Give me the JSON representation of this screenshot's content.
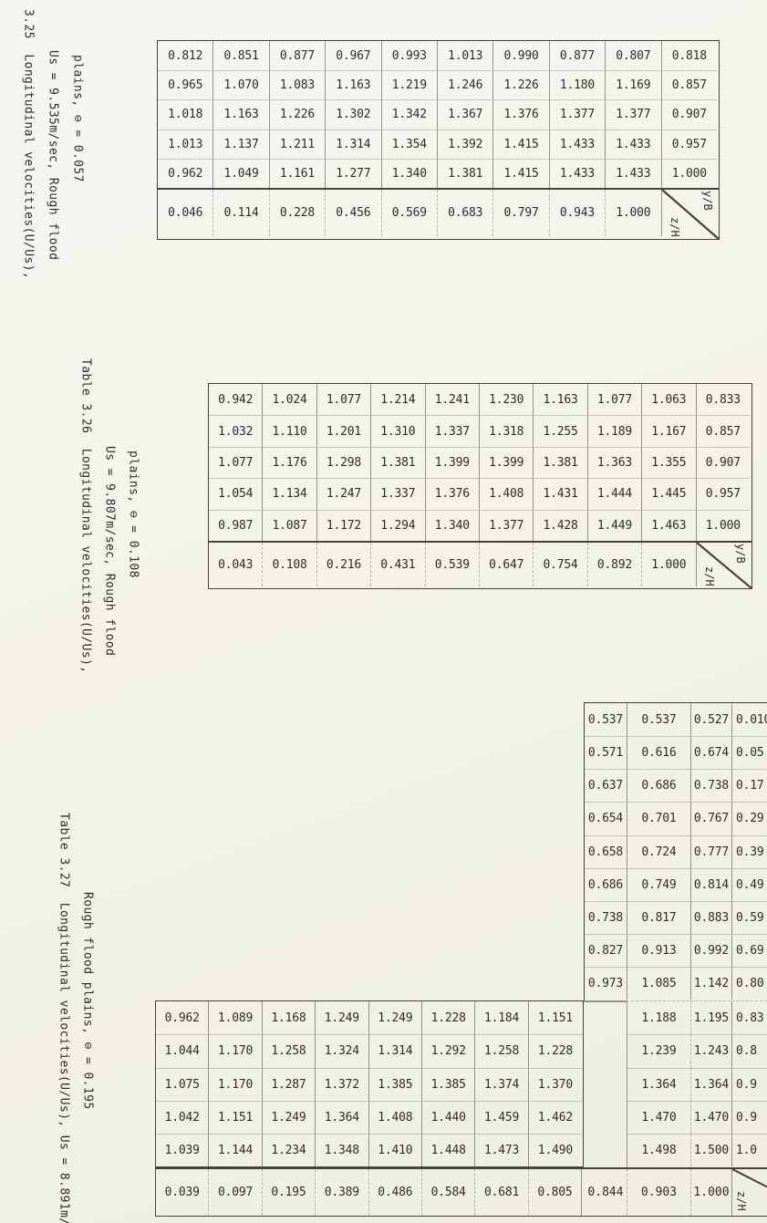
{
  "page": {
    "background": "#f4f3ec",
    "ink": "#2f2c26",
    "line_color": "#46423a"
  },
  "corner_labels": {
    "top_right": "y/B",
    "bottom_left": "z/H"
  },
  "tables": [
    {
      "number": "3.25",
      "caption_lines": [
        "3.25  Longitudinal velocities(U/Us),",
        "Us = 9.535m/sec, Rough flood",
        "plains, ⊖ = 0.057"
      ],
      "velocity_rows": [
        [
          "0.812",
          "0.851",
          "0.877",
          "0.967",
          "0.993",
          "1.013",
          "0.990",
          "0.877",
          "0.807"
        ],
        [
          "0.965",
          "1.070",
          "1.083",
          "1.163",
          "1.219",
          "1.246",
          "1.226",
          "1.180",
          "1.169"
        ],
        [
          "1.018",
          "1.163",
          "1.226",
          "1.302",
          "1.342",
          "1.367",
          "1.376",
          "1.377",
          "1.377"
        ],
        [
          "1.013",
          "1.137",
          "1.211",
          "1.314",
          "1.354",
          "1.392",
          "1.415",
          "1.433",
          "1.433"
        ],
        [
          "0.962",
          "1.049",
          "1.161",
          "1.277",
          "1.340",
          "1.381",
          "1.415",
          "1.433",
          "1.433"
        ]
      ],
      "z_h_column": [
        "0.818",
        "0.857",
        "0.907",
        "0.957",
        "1.000"
      ],
      "y_b_row": [
        "0.046",
        "0.114",
        "0.228",
        "0.456",
        "0.569",
        "0.683",
        "0.797",
        "0.943",
        "1.000"
      ]
    },
    {
      "number": "3.26",
      "caption_lines": [
        "Table 3.26  Longitudinal velocities(U/Us),",
        "Us = 9.807m/sec, Rough flood",
        "plains, ⊖ = 0.108"
      ],
      "velocity_rows": [
        [
          "0.942",
          "1.024",
          "1.077",
          "1.214",
          "1.241",
          "1.230",
          "1.163",
          "1.077",
          "1.063"
        ],
        [
          "1.032",
          "1.110",
          "1.201",
          "1.310",
          "1.337",
          "1.318",
          "1.255",
          "1.189",
          "1.167"
        ],
        [
          "1.077",
          "1.176",
          "1.298",
          "1.381",
          "1.399",
          "1.399",
          "1.381",
          "1.363",
          "1.355"
        ],
        [
          "1.054",
          "1.134",
          "1.247",
          "1.337",
          "1.376",
          "1.408",
          "1.431",
          "1.444",
          "1.445"
        ],
        [
          "0.987",
          "1.087",
          "1.172",
          "1.294",
          "1.340",
          "1.377",
          "1.428",
          "1.449",
          "1.463"
        ]
      ],
      "z_h_column": [
        "0.833",
        "0.857",
        "0.907",
        "0.957",
        "1.000"
      ],
      "y_b_row": [
        "0.043",
        "0.108",
        "0.216",
        "0.431",
        "0.539",
        "0.647",
        "0.754",
        "0.892",
        "1.000"
      ]
    },
    {
      "number": "3.27",
      "caption_lines": [
        "Table 3.27  Longitudinal velocities(U/Us), Us = 8.891m/",
        "Rough flood plains, ⊖ = 0.195"
      ],
      "upper_velocity_rows": [
        [
          "0.537",
          "0.537",
          "0.527"
        ],
        [
          "0.571",
          "0.616",
          "0.674"
        ],
        [
          "0.637",
          "0.686",
          "0.738"
        ],
        [
          "0.654",
          "0.701",
          "0.767"
        ],
        [
          "0.658",
          "0.724",
          "0.777"
        ],
        [
          "0.686",
          "0.749",
          "0.814"
        ],
        [
          "0.738",
          "0.817",
          "0.883"
        ],
        [
          "0.827",
          "0.913",
          "0.992"
        ],
        [
          "0.973",
          "1.085",
          "1.142"
        ]
      ],
      "upper_z_h_labels": [
        "0.010",
        "0.05",
        "0.17",
        "0.29",
        "0.39",
        "0.49",
        "0.59",
        "0.69",
        "0.80"
      ],
      "main_velocity_rows": [
        [
          "0.962",
          "1.089",
          "1.168",
          "1.249",
          "1.249",
          "1.228",
          "1.184",
          "1.151"
        ],
        [
          "1.044",
          "1.170",
          "1.258",
          "1.324",
          "1.314",
          "1.292",
          "1.258",
          "1.228"
        ],
        [
          "1.075",
          "1.170",
          "1.287",
          "1.372",
          "1.385",
          "1.385",
          "1.374",
          "1.370"
        ],
        [
          "1.042",
          "1.151",
          "1.249",
          "1.364",
          "1.408",
          "1.440",
          "1.459",
          "1.462"
        ],
        [
          "1.039",
          "1.144",
          "1.234",
          "1.348",
          "1.410",
          "1.448",
          "1.473",
          "1.490"
        ]
      ],
      "right_velocity_rows": [
        [
          "1.188",
          "1.195"
        ],
        [
          "1.239",
          "1.243"
        ],
        [
          "1.364",
          "1.364"
        ],
        [
          "1.470",
          "1.470"
        ],
        [
          "1.498",
          "1.500"
        ]
      ],
      "lower_z_h_labels": [
        "0.83",
        "0.8",
        "0.9",
        "0.9",
        "1.0"
      ],
      "y_b_row_left": [
        "0.039",
        "0.097",
        "0.195",
        "0.389",
        "0.486",
        "0.584",
        "0.681",
        "0.805"
      ],
      "y_b_row_right": [
        "0.844",
        "0.903",
        "1.000"
      ]
    }
  ]
}
